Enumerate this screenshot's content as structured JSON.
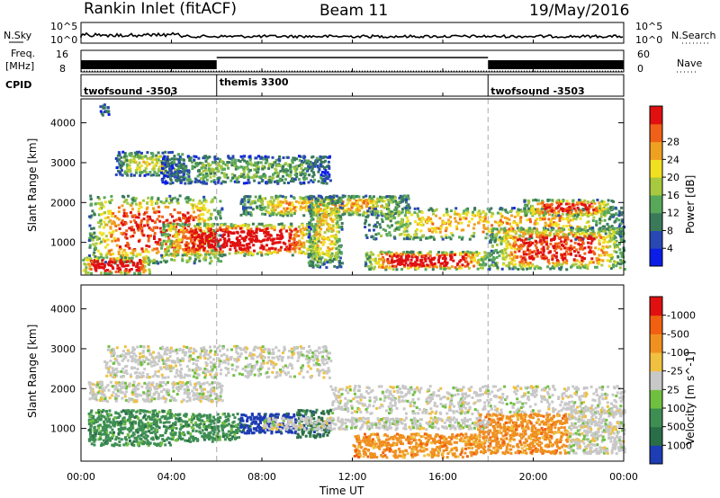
{
  "header": {
    "title": "Rankin Inlet (fitACF)",
    "beam": "Beam 11",
    "date": "19/May/2016"
  },
  "summary_panels": {
    "nsky_label": "N.Sky",
    "nsearch_label": "N.Search",
    "nsky_ticks": [
      "10^5",
      "10^0"
    ],
    "freq_label": "Freq.",
    "freq_unit": "[MHz]",
    "freq_ticks": [
      "16",
      "8"
    ],
    "nave_label": "Nave",
    "nave_ticks": [
      "60",
      "0"
    ],
    "cpid_label": "CPID",
    "cpid_segments": [
      {
        "name": "twofsound -3503",
        "start_hour": 0,
        "end_hour": 6
      },
      {
        "name": "themis 3300",
        "start_hour": 6,
        "end_hour": 18
      },
      {
        "name": "twofsound -3503",
        "start_hour": 18,
        "end_hour": 24
      }
    ]
  },
  "x_axis": {
    "label": "Time UT",
    "ticks": [
      "00:00",
      "04:00",
      "08:00",
      "12:00",
      "16:00",
      "20:00",
      "00:00"
    ]
  },
  "chart_data": [
    {
      "type": "heatmap",
      "name": "power",
      "ylabel": "Slant Range [km]",
      "yticks": [
        "1000",
        "2000",
        "3000",
        "4000"
      ],
      "ylim": [
        180,
        4600
      ],
      "xlim": [
        0,
        24
      ],
      "colorbar": {
        "label": "Power [dB]",
        "ticks": [
          "4",
          "8",
          "12",
          "16",
          "20",
          "24",
          "28"
        ],
        "colors": [
          "#0a1ee6",
          "#2848b4",
          "#3a7a5a",
          "#58a85a",
          "#a8c840",
          "#f0e020",
          "#f0a020",
          "#f06018",
          "#e01010"
        ]
      },
      "regions": [
        {
          "x": [
            0.3,
            6.2
          ],
          "y": [
            500,
            2200
          ],
          "level": 0.6
        },
        {
          "x": [
            1.5,
            4.5
          ],
          "y": [
            2700,
            3300
          ],
          "level": 0.35
        },
        {
          "x": [
            3.5,
            11.0
          ],
          "y": [
            2500,
            3200
          ],
          "level": 0.25
        },
        {
          "x": [
            7.0,
            14.5
          ],
          "y": [
            1700,
            2200
          ],
          "level": 0.45
        },
        {
          "x": [
            3.5,
            10.5
          ],
          "y": [
            700,
            1500
          ],
          "level": 0.75
        },
        {
          "x": [
            10.0,
            11.5
          ],
          "y": [
            400,
            2200
          ],
          "level": 0.4
        },
        {
          "x": [
            12.5,
            18.0
          ],
          "y": [
            350,
            800
          ],
          "level": 0.7
        },
        {
          "x": [
            12.5,
            24.0
          ],
          "y": [
            1100,
            1900
          ],
          "level": 0.45
        },
        {
          "x": [
            18.0,
            24.0
          ],
          "y": [
            350,
            1400
          ],
          "level": 0.6
        },
        {
          "x": [
            19.5,
            23.5
          ],
          "y": [
            1700,
            2100
          ],
          "level": 0.6
        },
        {
          "x": [
            0.0,
            3.0
          ],
          "y": [
            250,
            650
          ],
          "level": 0.85
        },
        {
          "x": [
            0.8,
            1.2
          ],
          "y": [
            4200,
            4500
          ],
          "level": 0.15
        }
      ]
    },
    {
      "type": "heatmap",
      "name": "velocity",
      "ylabel": "Slant Range [km]",
      "yticks": [
        "1000",
        "2000",
        "3000",
        "4000"
      ],
      "ylim": [
        180,
        4600
      ],
      "xlim": [
        0,
        24
      ],
      "colorbar": {
        "label": "Velocity [m s^-1]",
        "ticks": [
          "1000",
          "500",
          "100",
          "25",
          "-25",
          "-100",
          "-500",
          "-1000"
        ],
        "colors": [
          "#1e3cb4",
          "#2a6e48",
          "#3e8e54",
          "#70c040",
          "#c8c8c8",
          "#f0c040",
          "#f09020",
          "#f06010",
          "#e01010"
        ]
      },
      "regions": [
        {
          "x": [
            0.3,
            6.2
          ],
          "y": [
            1700,
            2200
          ],
          "vclass": 4
        },
        {
          "x": [
            1.0,
            11.0
          ],
          "y": [
            2300,
            3100
          ],
          "vclass": 4
        },
        {
          "x": [
            0.3,
            4.0
          ],
          "y": [
            600,
            1500
          ],
          "vclass": 2
        },
        {
          "x": [
            4.0,
            7.0
          ],
          "y": [
            700,
            1400
          ],
          "vclass": 2
        },
        {
          "x": [
            7.0,
            9.5
          ],
          "y": [
            900,
            1400
          ],
          "vclass": 0
        },
        {
          "x": [
            9.5,
            11.0
          ],
          "y": [
            800,
            1500
          ],
          "vclass": 1
        },
        {
          "x": [
            11.0,
            24.0
          ],
          "y": [
            1400,
            2100
          ],
          "vclass": 4
        },
        {
          "x": [
            12.0,
            17.5
          ],
          "y": [
            300,
            900
          ],
          "vclass": 6
        },
        {
          "x": [
            17.5,
            21.5
          ],
          "y": [
            400,
            1400
          ],
          "vclass": 6
        },
        {
          "x": [
            8.0,
            18.0
          ],
          "y": [
            1000,
            1300
          ],
          "vclass": 4
        },
        {
          "x": [
            21.5,
            24.0
          ],
          "y": [
            400,
            1500
          ],
          "vclass": 4
        }
      ]
    }
  ]
}
